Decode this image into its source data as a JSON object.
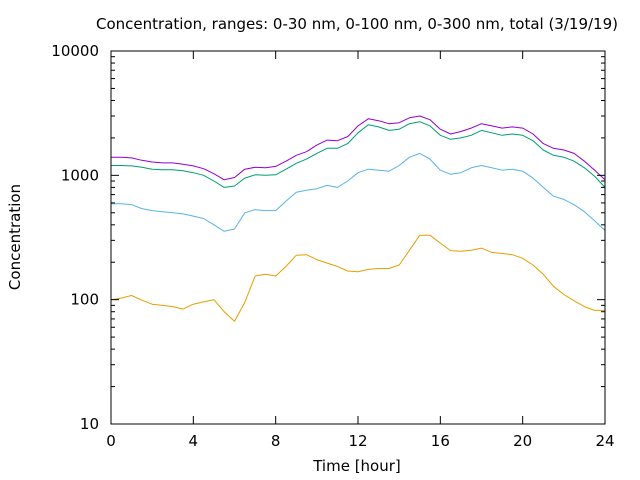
{
  "chart_data": {
    "type": "line",
    "title": "Concentration, ranges: 0-30 nm, 0-100 nm, 0-300 nm, total (3/19/19)",
    "xlabel": "Time [hour]",
    "ylabel": "Concentration",
    "xlim": [
      0,
      24
    ],
    "ylim": [
      10,
      10000
    ],
    "yscale": "log",
    "grid": false,
    "legend": "none",
    "x_ticks": [
      0,
      4,
      8,
      12,
      16,
      20,
      24
    ],
    "y_ticks": [
      10,
      100,
      1000,
      10000
    ],
    "x_tick_labels": [
      "0",
      "4",
      "8",
      "12",
      "16",
      "20",
      "24"
    ],
    "y_tick_labels": [
      "10",
      "100",
      "1000",
      "10000"
    ],
    "x": [
      0,
      0.5,
      1,
      1.5,
      2,
      2.5,
      3,
      3.5,
      4,
      4.5,
      5,
      5.5,
      6,
      6.5,
      7,
      7.5,
      8,
      8.5,
      9,
      9.5,
      10,
      10.5,
      11,
      11.5,
      12,
      12.5,
      13,
      13.5,
      14,
      14.5,
      15,
      15.5,
      16,
      16.5,
      17,
      17.5,
      18,
      18.5,
      19,
      19.5,
      20,
      20.5,
      21,
      21.5,
      22,
      22.5,
      23,
      23.5,
      24
    ],
    "series": [
      {
        "color": "#e69f00",
        "values": [
          100,
          103,
          108,
          99,
          92,
          90,
          88,
          84,
          92,
          96,
          100,
          80,
          67,
          95,
          155,
          160,
          155,
          185,
          228,
          230,
          210,
          197,
          185,
          170,
          168,
          175,
          178,
          178,
          190,
          250,
          330,
          330,
          285,
          248,
          245,
          250,
          260,
          240,
          235,
          230,
          215,
          190,
          160,
          128,
          110,
          98,
          88,
          82,
          82
        ]
      },
      {
        "color": "#56b4e9",
        "values": [
          590,
          590,
          580,
          540,
          520,
          510,
          500,
          490,
          470,
          450,
          400,
          355,
          370,
          500,
          530,
          520,
          520,
          620,
          730,
          760,
          780,
          830,
          800,
          900,
          1050,
          1120,
          1100,
          1080,
          1200,
          1400,
          1500,
          1350,
          1100,
          1020,
          1050,
          1150,
          1200,
          1150,
          1100,
          1120,
          1080,
          950,
          800,
          680,
          640,
          580,
          510,
          430,
          360
        ]
      },
      {
        "color": "#009e73",
        "values": [
          1200,
          1200,
          1190,
          1160,
          1120,
          1110,
          1110,
          1090,
          1050,
          1000,
          900,
          800,
          820,
          950,
          1010,
          1000,
          1010,
          1120,
          1250,
          1350,
          1500,
          1650,
          1650,
          1800,
          2200,
          2550,
          2450,
          2300,
          2350,
          2600,
          2700,
          2500,
          2100,
          1950,
          2000,
          2100,
          2300,
          2200,
          2100,
          2150,
          2100,
          1900,
          1600,
          1450,
          1400,
          1300,
          1150,
          980,
          800
        ]
      },
      {
        "color": "#9400d3",
        "values": [
          1400,
          1400,
          1380,
          1320,
          1280,
          1260,
          1260,
          1230,
          1190,
          1130,
          1030,
          920,
          960,
          1120,
          1160,
          1150,
          1180,
          1300,
          1450,
          1550,
          1750,
          1920,
          1900,
          2050,
          2500,
          2850,
          2750,
          2600,
          2650,
          2900,
          3000,
          2800,
          2350,
          2150,
          2250,
          2400,
          2600,
          2500,
          2400,
          2450,
          2400,
          2150,
          1800,
          1650,
          1600,
          1500,
          1300,
          1100,
          920
        ]
      }
    ]
  }
}
